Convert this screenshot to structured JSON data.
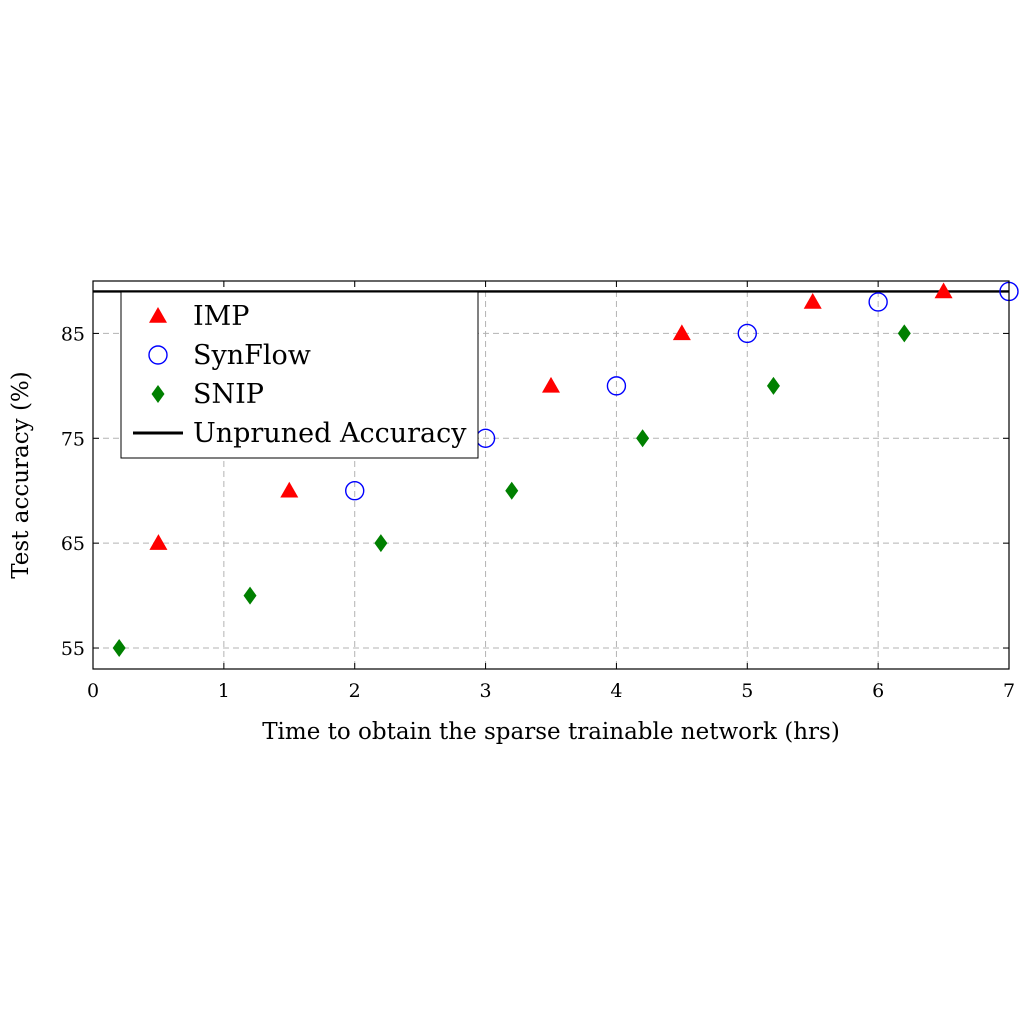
{
  "chart_data": {
    "type": "scatter",
    "title": "",
    "xlabel": "Time to obtain the sparse trainable network (hrs)",
    "ylabel": "Test accuracy (%)",
    "xlim": [
      0,
      7
    ],
    "ylim": [
      53,
      90
    ],
    "xticks": [
      0,
      1,
      2,
      3,
      4,
      5,
      6,
      7
    ],
    "yticks": [
      55,
      65,
      75,
      85
    ],
    "grid": true,
    "legend_position": "top-left",
    "series": [
      {
        "name": "IMP",
        "marker": "triangle",
        "color": "#ff0000",
        "points": [
          [
            0.5,
            65
          ],
          [
            1.5,
            70
          ],
          [
            3.5,
            80
          ],
          [
            4.5,
            85
          ],
          [
            5.5,
            88
          ],
          [
            6.5,
            89
          ]
        ]
      },
      {
        "name": "SynFlow",
        "marker": "circle-open",
        "color": "#0000ff",
        "points": [
          [
            2,
            70
          ],
          [
            3,
            75
          ],
          [
            4,
            80
          ],
          [
            5,
            85
          ],
          [
            6,
            88
          ],
          [
            7,
            89
          ]
        ]
      },
      {
        "name": "SNIP",
        "marker": "diamond",
        "color": "#008000",
        "points": [
          [
            0.2,
            55
          ],
          [
            1.2,
            60
          ],
          [
            2.2,
            65
          ],
          [
            3.2,
            70
          ],
          [
            4.2,
            75
          ],
          [
            5.2,
            80
          ],
          [
            6.2,
            85
          ]
        ]
      }
    ],
    "reference_line": {
      "name": "Unpruned Accuracy",
      "y": 89,
      "color": "#000000"
    }
  }
}
